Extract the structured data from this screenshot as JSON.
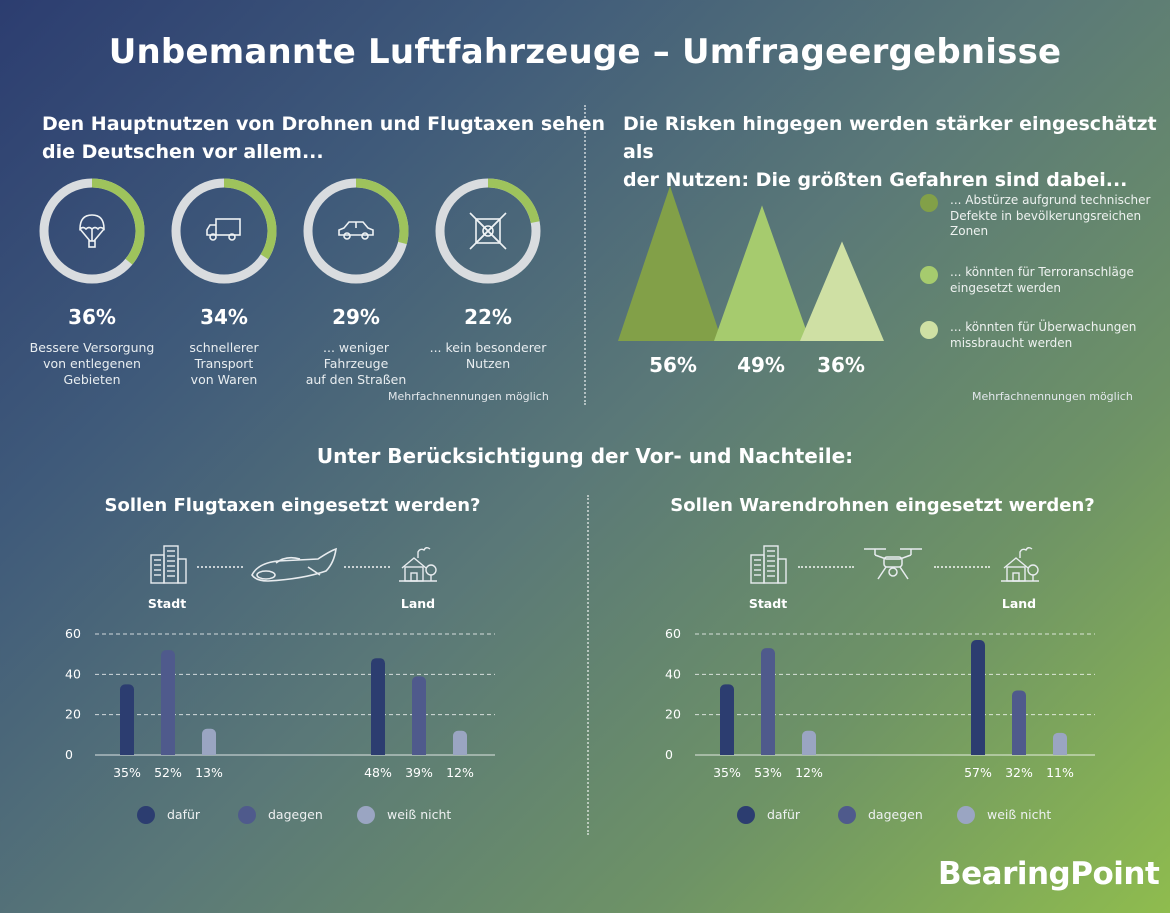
{
  "title": "Unbemannte Luftfahrzeuge – Umfrageergebnisse",
  "benefits": {
    "heading_line1": "Den Hauptnutzen von Drohnen und Flugtaxen sehen",
    "heading_line2": "die Deutschen vor allem...",
    "note": "Mehrfachnennungen möglich",
    "items": [
      {
        "icon": "parachute-icon",
        "value": 36,
        "pct_label": "36%",
        "label_lines": [
          "Bessere Versorgung",
          "von entlegenen",
          "Gebieten"
        ]
      },
      {
        "icon": "truck-icon",
        "value": 34,
        "pct_label": "34%",
        "label_lines": [
          "schnellerer Transport",
          "von Waren"
        ]
      },
      {
        "icon": "car-icon",
        "value": 29,
        "pct_label": "29%",
        "label_lines": [
          "... weniger Fahrzeuge",
          "auf den Straßen"
        ]
      },
      {
        "icon": "crossed-box-icon",
        "value": 22,
        "pct_label": "22%",
        "label_lines": [
          "... kein besonderer",
          "Nutzen"
        ]
      }
    ]
  },
  "risks": {
    "heading_line1": "Die Risken hingegen werden stärker eingeschätzt als",
    "heading_line2": "der Nutzen: Die größten Gefahren sind dabei...",
    "note": "Mehrfachnennungen möglich",
    "items": [
      {
        "value": 56,
        "pct_label": "56%",
        "color": "#82a048",
        "legend_lines": [
          "... Abstürze aufgrund technischer",
          "Defekte in bevölkerungsreichen",
          "Zonen"
        ]
      },
      {
        "value": 49,
        "pct_label": "49%",
        "color": "#a6cb6e",
        "legend_lines": [
          "... könnten für Terroranschläge",
          "eingesetzt werden"
        ]
      },
      {
        "value": 36,
        "pct_label": "36%",
        "color": "#cfe0a4",
        "legend_lines": [
          "... könnten für Überwachungen",
          "missbraucht werden"
        ]
      }
    ]
  },
  "section_title": "Unter Berücksichtigung der Vor- und Nachteile:",
  "colors": {
    "dafuer": "#2c3d70",
    "dagegen": "#4f5a8c",
    "weiss_nicht": "#9aa5c2",
    "ring_bg": "#d9dcdf",
    "ring_fg": "#9ec35c"
  },
  "chart_data": [
    {
      "type": "bar",
      "title": "Sollen Flugtaxen eingesetzt werden?",
      "icon": "air-taxi-icon",
      "categories": [
        "Stadt",
        "Land"
      ],
      "series": [
        {
          "name": "dafür",
          "values": [
            35,
            48
          ],
          "labels": [
            "35%",
            "48%"
          ]
        },
        {
          "name": "dagegen",
          "values": [
            52,
            39
          ],
          "labels": [
            "52%",
            "39%"
          ]
        },
        {
          "name": "weiß nicht",
          "values": [
            13,
            12
          ],
          "labels": [
            "13%",
            "12%"
          ]
        }
      ],
      "yticks": [
        "0",
        "20",
        "40",
        "60"
      ],
      "ylim": [
        0,
        60
      ],
      "grid": true
    },
    {
      "type": "bar",
      "title": "Sollen Warendrohnen eingesetzt werden?",
      "icon": "drone-icon",
      "categories": [
        "Stadt",
        "Land"
      ],
      "series": [
        {
          "name": "dafür",
          "values": [
            35,
            57
          ],
          "labels": [
            "35%",
            "57%"
          ]
        },
        {
          "name": "dagegen",
          "values": [
            53,
            32
          ],
          "labels": [
            "53%",
            "32%"
          ]
        },
        {
          "name": "weiß nicht",
          "values": [
            12,
            11
          ],
          "labels": [
            "12%",
            "11%"
          ]
        }
      ],
      "yticks": [
        "0",
        "20",
        "40",
        "60"
      ],
      "ylim": [
        0,
        60
      ],
      "grid": true
    }
  ],
  "logo": "BearingPoint"
}
